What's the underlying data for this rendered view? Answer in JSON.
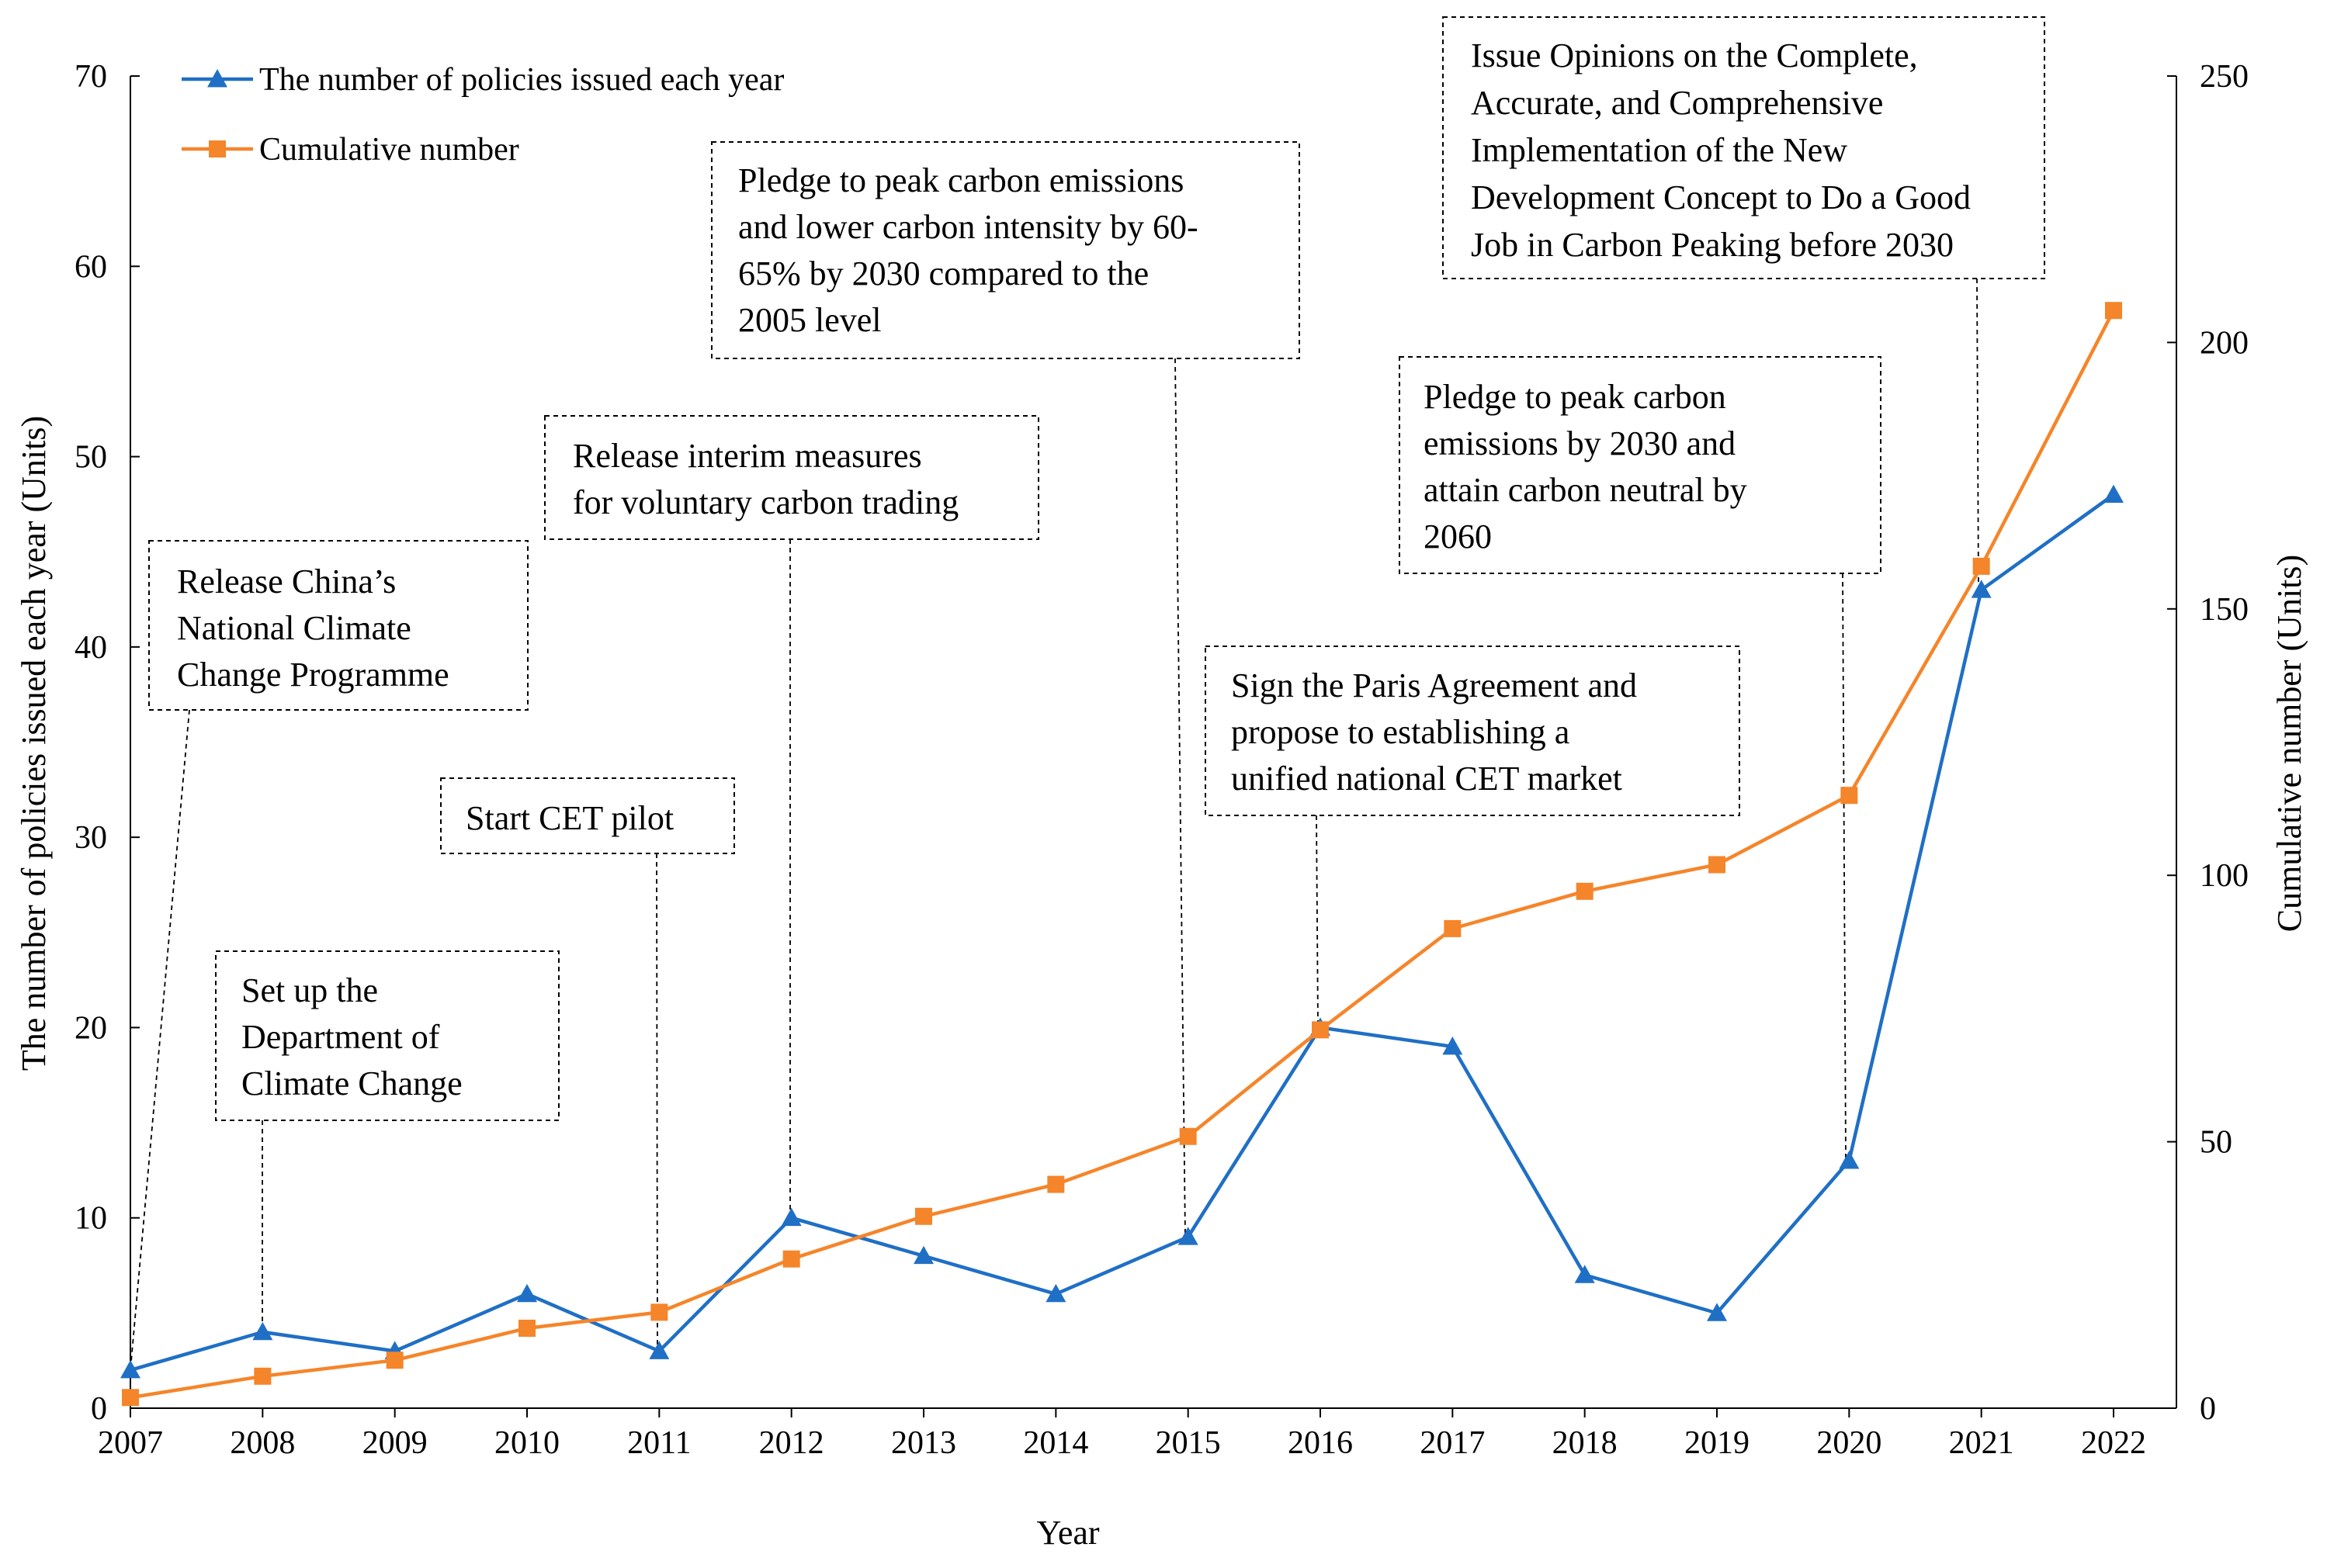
{
  "chart_data": {
    "type": "line",
    "title": "",
    "xlabel": "Year",
    "ylabel_left": "The number of policies issued each year (Units)",
    "ylabel_right": "Cumulative number (Units)",
    "x": [
      "2007",
      "2008",
      "2009",
      "2010",
      "2011",
      "2012",
      "2013",
      "2014",
      "2015",
      "2016",
      "2017",
      "2018",
      "2019",
      "2020",
      "2021",
      "2022"
    ],
    "ylim_left": [
      0,
      70
    ],
    "yticks_left": [
      0,
      10,
      20,
      30,
      40,
      50,
      60,
      70
    ],
    "ylim_right": [
      0,
      250
    ],
    "yticks_right": [
      0,
      50,
      100,
      150,
      200,
      250
    ],
    "grid": false,
    "legend_position": "top-left",
    "series": [
      {
        "name": "The number of policies issued each year",
        "axis": "left",
        "color": "#1f6fc5",
        "marker": "triangle",
        "values": [
          2,
          4,
          3,
          6,
          3,
          10,
          8,
          6,
          9,
          20,
          19,
          7,
          5,
          13,
          43,
          48
        ]
      },
      {
        "name": "Cumulative number",
        "axis": "right",
        "color": "#f5852a",
        "marker": "square",
        "values": [
          2,
          6,
          9,
          15,
          18,
          28,
          36,
          42,
          51,
          71,
          90,
          97,
          102,
          115,
          158,
          206
        ]
      }
    ],
    "annotations": [
      {
        "year": "2007",
        "lines": [
          "Release China’s",
          "National Climate",
          "Change Programme"
        ]
      },
      {
        "year": "2008",
        "lines": [
          "Set up the",
          "Department of",
          "Climate Change"
        ]
      },
      {
        "year": "2011",
        "lines": [
          "Start CET pilot"
        ]
      },
      {
        "year": "2012",
        "lines": [
          "Release interim measures",
          "for voluntary carbon trading"
        ]
      },
      {
        "year": "2015",
        "lines": [
          "Pledge to peak carbon emissions",
          "and lower carbon intensity by 60-",
          "65% by 2030 compared to the",
          "2005 level"
        ]
      },
      {
        "year": "2016",
        "lines": [
          "Sign the Paris Agreement and",
          "propose to establishing a",
          "unified national CET market"
        ]
      },
      {
        "year": "2020",
        "lines": [
          "Pledge to peak carbon",
          "emissions by 2030 and",
          "attain carbon neutral by",
          "2060"
        ]
      },
      {
        "year": "2021",
        "lines": [
          "Issue Opinions on the Complete,",
          "Accurate, and Comprehensive",
          "Implementation of the New",
          "Development Concept to Do a Good",
          "Job in Carbon Peaking before 2030"
        ]
      }
    ]
  }
}
